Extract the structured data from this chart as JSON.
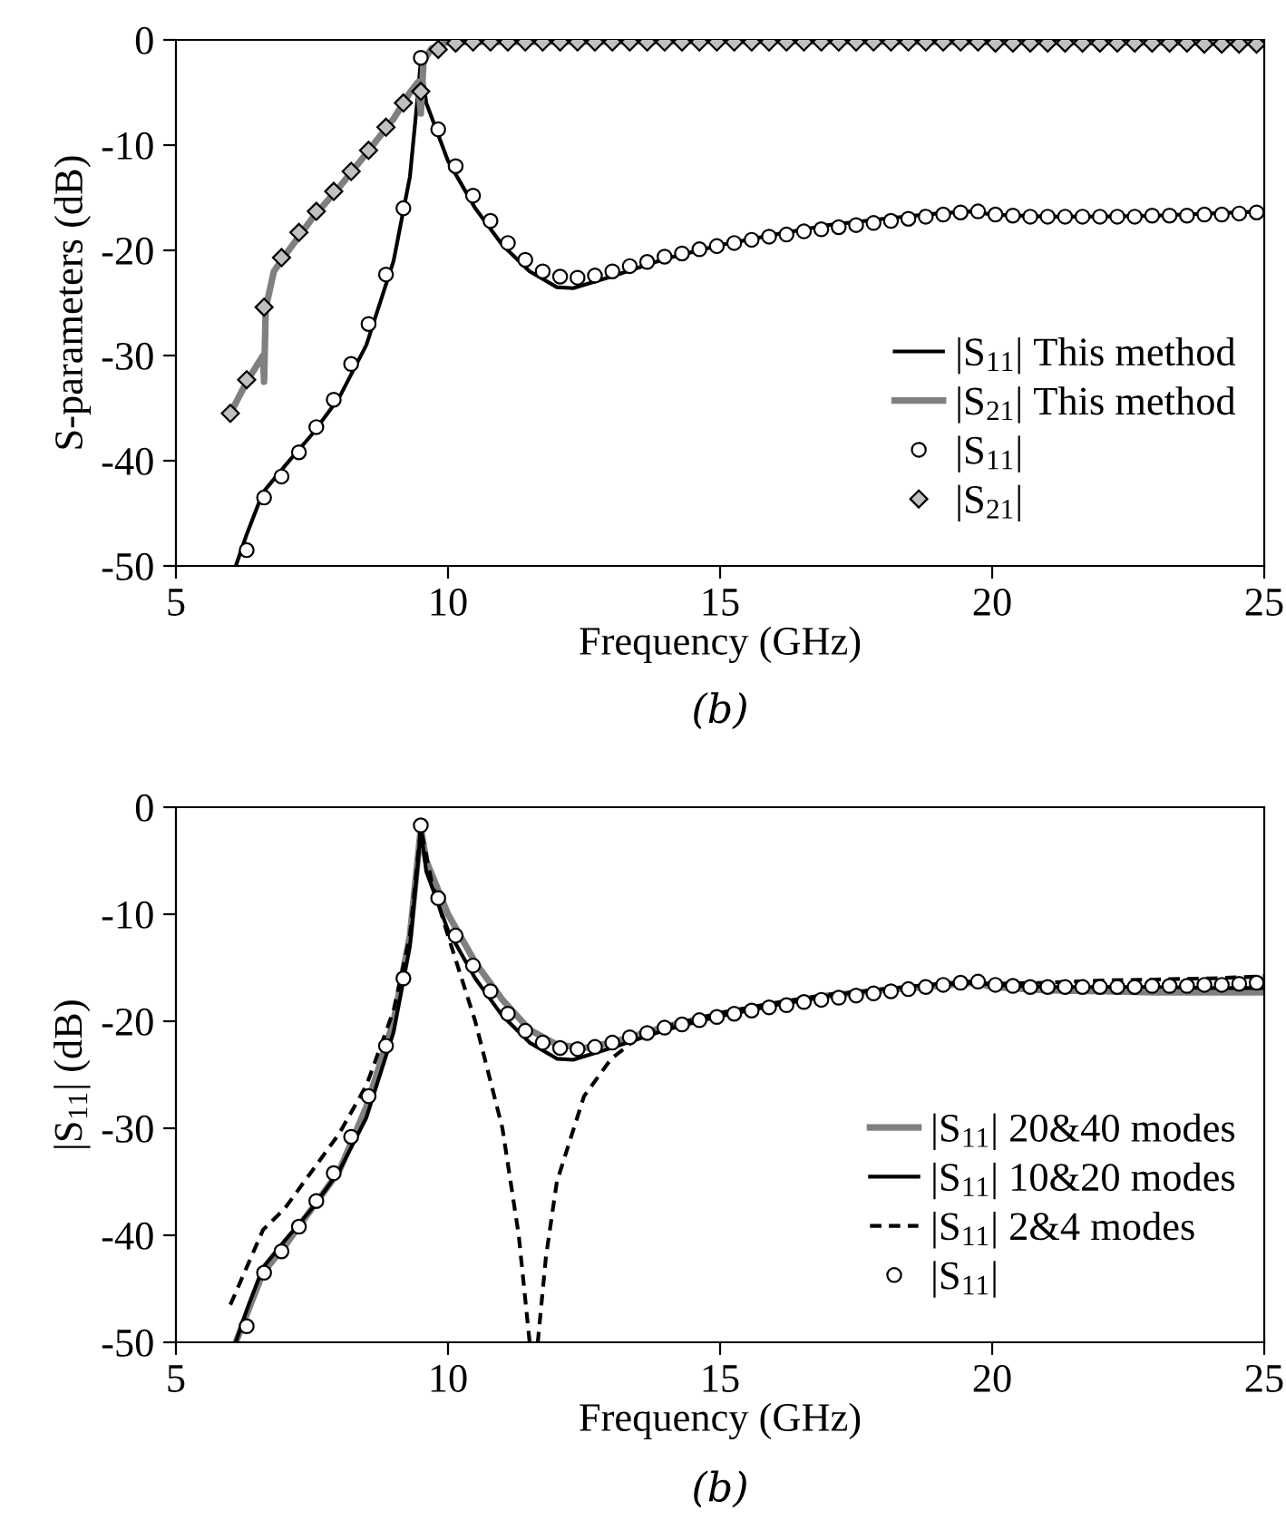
{
  "chart_data": [
    {
      "type": "line",
      "xlabel": "Frequency (GHz)",
      "ylabel": "S-parameters (dB)",
      "xlim": [
        5,
        25
      ],
      "xticks": [
        5,
        10,
        15,
        20,
        25
      ],
      "ylim": [
        -50,
        0
      ],
      "yticks": [
        -50,
        -40,
        -30,
        -20,
        -10,
        0
      ],
      "grid": false,
      "legend": "bottom right",
      "annotations": [
        "(b)"
      ],
      "series": [
        {
          "name": "|S$_{11}$| This method",
          "color": "#000000",
          "line_style": "solid",
          "marker": "none",
          "x": [
            6.1,
            6.3,
            6.6,
            7,
            7.5,
            8,
            8.5,
            9,
            9.3,
            9.45,
            9.5,
            9.6,
            10,
            10.5,
            11,
            11.5,
            12,
            12.3,
            13,
            14,
            15,
            16,
            17,
            18,
            19,
            19.6,
            20,
            21,
            22,
            23,
            24,
            25
          ],
          "values": [
            -50,
            -47,
            -43,
            -40.5,
            -37.5,
            -34,
            -29,
            -21,
            -13,
            -5,
            -2,
            -6,
            -11.5,
            -16,
            -19.5,
            -22,
            -23.5,
            -23.6,
            -22.5,
            -20.8,
            -19.5,
            -18.5,
            -17.6,
            -17,
            -16.5,
            -16.3,
            -16.6,
            -16.8,
            -16.8,
            -16.7,
            -16.5,
            -16.3
          ]
        },
        {
          "name": "|S$_{21}$| This method",
          "color": "#808080",
          "line_style": "solid",
          "marker": "none",
          "x": [
            6,
            6.3,
            6.6,
            6.62,
            6.65,
            6.8,
            7,
            7.5,
            8,
            8.5,
            9,
            9.3,
            9.45,
            9.5,
            9.55,
            9.7,
            10,
            15,
            20,
            25
          ],
          "values": [
            -35.5,
            -32.5,
            -30,
            -32.5,
            -25.5,
            -22,
            -20.5,
            -17,
            -14,
            -10.8,
            -7.5,
            -5,
            -4,
            -7,
            -2,
            -0.8,
            -0.2,
            -0.1,
            -0.2,
            -0.3
          ]
        },
        {
          "name": "|S$_{11}$|",
          "type": "scatter",
          "color": "#000000",
          "marker": "circle",
          "x": [
            6.3,
            6.62,
            6.94,
            7.26,
            7.58,
            7.9,
            8.22,
            8.54,
            8.86,
            9.18,
            9.5,
            9.82,
            10.14,
            10.46,
            10.78,
            11.1,
            11.42,
            11.74,
            12.06,
            12.38,
            12.7,
            13.02,
            13.34,
            13.66,
            13.98,
            14.3,
            14.62,
            14.94,
            15.26,
            15.58,
            15.9,
            16.22,
            16.54,
            16.86,
            17.18,
            17.5,
            17.82,
            18.14,
            18.46,
            18.78,
            19.1,
            19.42,
            19.74,
            20.06,
            20.38,
            20.7,
            21.02,
            21.34,
            21.66,
            21.98,
            22.3,
            22.62,
            22.94,
            23.26,
            23.58,
            23.9,
            24.22,
            24.54,
            24.86
          ],
          "values": [
            -48.5,
            -43.5,
            -41.5,
            -39.2,
            -36.8,
            -34.2,
            -30.8,
            -27,
            -22.3,
            -16,
            -1.7,
            -8.5,
            -12,
            -14.8,
            -17.2,
            -19.3,
            -20.9,
            -22,
            -22.5,
            -22.6,
            -22.4,
            -22,
            -21.5,
            -21.1,
            -20.6,
            -20.3,
            -19.9,
            -19.6,
            -19.3,
            -19,
            -18.7,
            -18.5,
            -18.2,
            -18,
            -17.8,
            -17.6,
            -17.4,
            -17.2,
            -17,
            -16.8,
            -16.6,
            -16.4,
            -16.3,
            -16.6,
            -16.7,
            -16.8,
            -16.8,
            -16.8,
            -16.8,
            -16.8,
            -16.8,
            -16.8,
            -16.7,
            -16.7,
            -16.7,
            -16.6,
            -16.6,
            -16.5,
            -16.4
          ]
        },
        {
          "name": "|S$_{21}$|",
          "type": "scatter",
          "color": "#c0c0c0",
          "marker": "diamond",
          "x": [
            6.0,
            6.3,
            6.62,
            6.94,
            7.26,
            7.58,
            7.9,
            8.22,
            8.54,
            8.86,
            9.18,
            9.5,
            9.82,
            10.14,
            10.46,
            10.78,
            11.1,
            11.42,
            11.74,
            12.06,
            12.38,
            12.7,
            13.02,
            13.34,
            13.66,
            13.98,
            14.3,
            14.62,
            14.94,
            15.26,
            15.58,
            15.9,
            16.22,
            16.54,
            16.86,
            17.18,
            17.5,
            17.82,
            18.14,
            18.46,
            18.78,
            19.1,
            19.42,
            19.74,
            20.06,
            20.38,
            20.7,
            21.02,
            21.34,
            21.66,
            21.98,
            22.3,
            22.62,
            22.94,
            23.26,
            23.58,
            23.9,
            24.22,
            24.54,
            24.86
          ],
          "values": [
            -35.5,
            -32.3,
            -25.4,
            -20.7,
            -18.3,
            -16.3,
            -14.4,
            -12.5,
            -10.5,
            -8.3,
            -6,
            -4.9,
            -0.9,
            -0.3,
            -0.2,
            -0.2,
            -0.2,
            -0.2,
            -0.2,
            -0.2,
            -0.2,
            -0.2,
            -0.2,
            -0.2,
            -0.2,
            -0.2,
            -0.2,
            -0.2,
            -0.2,
            -0.2,
            -0.2,
            -0.2,
            -0.2,
            -0.2,
            -0.2,
            -0.2,
            -0.2,
            -0.2,
            -0.2,
            -0.2,
            -0.2,
            -0.2,
            -0.2,
            -0.2,
            -0.3,
            -0.3,
            -0.3,
            -0.3,
            -0.3,
            -0.3,
            -0.3,
            -0.3,
            -0.3,
            -0.3,
            -0.3,
            -0.3,
            -0.4,
            -0.4,
            -0.4,
            -0.4
          ]
        }
      ]
    },
    {
      "type": "line",
      "xlabel": "Frequency (GHz)",
      "ylabel": "|S$_{11}$| (dB)",
      "xlim": [
        5,
        25
      ],
      "xticks": [
        5,
        10,
        15,
        20,
        25
      ],
      "ylim": [
        -50,
        0
      ],
      "yticks": [
        -50,
        -40,
        -30,
        -20,
        -10,
        0
      ],
      "grid": false,
      "legend": "bottom right",
      "annotations": [
        "(b)"
      ],
      "series": [
        {
          "name": "|S$_{11}$| 20&40 modes",
          "color": "#808080",
          "line_style": "solid",
          "marker": "none",
          "x": [
            6.1,
            6.6,
            7,
            7.5,
            8,
            8.5,
            9,
            9.3,
            9.5,
            9.6,
            10,
            10.5,
            11,
            11.5,
            12,
            12.5,
            13,
            14,
            15,
            16,
            17,
            18,
            19,
            19.7,
            20,
            21,
            22,
            23,
            24,
            25
          ],
          "values": [
            -50,
            -43.5,
            -41,
            -37.5,
            -34,
            -28,
            -20,
            -12,
            -2,
            -5,
            -10,
            -14.5,
            -18,
            -20.8,
            -22.2,
            -22.5,
            -22,
            -20.5,
            -19.4,
            -18.4,
            -17.6,
            -17.1,
            -16.7,
            -16.4,
            -16.8,
            -17.1,
            -17.2,
            -17.3,
            -17.3,
            -17.3
          ]
        },
        {
          "name": "|S$_{11}$| 10&20 modes",
          "color": "#000000",
          "line_style": "solid",
          "marker": "none",
          "x": [
            6.1,
            6.3,
            6.6,
            7,
            7.5,
            8,
            8.5,
            9,
            9.3,
            9.45,
            9.5,
            9.6,
            10,
            10.5,
            11,
            11.5,
            12,
            12.3,
            13,
            14,
            15,
            16,
            17,
            18,
            19,
            19.6,
            20,
            21,
            22,
            23,
            24,
            25
          ],
          "values": [
            -50,
            -47,
            -43,
            -40.5,
            -37.5,
            -34,
            -29,
            -21,
            -13,
            -5,
            -2,
            -6,
            -11.5,
            -16,
            -19.5,
            -22,
            -23.5,
            -23.6,
            -22.5,
            -20.8,
            -19.5,
            -18.5,
            -17.6,
            -17,
            -16.5,
            -16.3,
            -16.6,
            -16.8,
            -16.8,
            -16.8,
            -16.9,
            -16.9
          ]
        },
        {
          "name": "|S$_{11}$| 2&4 modes",
          "color": "#000000",
          "line_style": "dashed",
          "marker": "none",
          "x": [
            6,
            6.3,
            6.6,
            7,
            7.5,
            8,
            8.5,
            9,
            9.3,
            9.5,
            9.7,
            10,
            10.5,
            11,
            11.3,
            11.5,
            11.65,
            11.8,
            12,
            12.5,
            13,
            13.5,
            14,
            15,
            16,
            17,
            18,
            19,
            19.7,
            20,
            21,
            22,
            23,
            24,
            25
          ],
          "values": [
            -46.5,
            -43,
            -39.5,
            -37.5,
            -34,
            -30.5,
            -26,
            -19,
            -12,
            -2,
            -7,
            -12,
            -20,
            -30,
            -40,
            -50,
            -50,
            -42,
            -35,
            -27,
            -23.5,
            -21.5,
            -20.5,
            -19.2,
            -18.3,
            -17.5,
            -17,
            -16.6,
            -16.4,
            -16.5,
            -16.4,
            -16.2,
            -16.1,
            -16,
            -15.8
          ]
        },
        {
          "name": "|S$_{11}$|",
          "type": "scatter",
          "color": "#000000",
          "marker": "circle",
          "x": [
            6.3,
            6.62,
            6.94,
            7.26,
            7.58,
            7.9,
            8.22,
            8.54,
            8.86,
            9.18,
            9.5,
            9.82,
            10.14,
            10.46,
            10.78,
            11.1,
            11.42,
            11.74,
            12.06,
            12.38,
            12.7,
            13.02,
            13.34,
            13.66,
            13.98,
            14.3,
            14.62,
            14.94,
            15.26,
            15.58,
            15.9,
            16.22,
            16.54,
            16.86,
            17.18,
            17.5,
            17.82,
            18.14,
            18.46,
            18.78,
            19.1,
            19.42,
            19.74,
            20.06,
            20.38,
            20.7,
            21.02,
            21.34,
            21.66,
            21.98,
            22.3,
            22.62,
            22.94,
            23.26,
            23.58,
            23.9,
            24.22,
            24.54,
            24.86
          ],
          "values": [
            -48.5,
            -43.5,
            -41.5,
            -39.2,
            -36.8,
            -34.2,
            -30.8,
            -27,
            -22.3,
            -16,
            -1.7,
            -8.5,
            -12,
            -14.8,
            -17.2,
            -19.3,
            -20.9,
            -22,
            -22.5,
            -22.6,
            -22.4,
            -22,
            -21.5,
            -21.1,
            -20.6,
            -20.3,
            -19.9,
            -19.6,
            -19.3,
            -19,
            -18.7,
            -18.5,
            -18.2,
            -18,
            -17.8,
            -17.6,
            -17.4,
            -17.2,
            -17,
            -16.8,
            -16.6,
            -16.4,
            -16.3,
            -16.6,
            -16.7,
            -16.8,
            -16.8,
            -16.8,
            -16.8,
            -16.8,
            -16.8,
            -16.8,
            -16.7,
            -16.7,
            -16.7,
            -16.6,
            -16.6,
            -16.5,
            -16.4
          ]
        }
      ]
    }
  ]
}
